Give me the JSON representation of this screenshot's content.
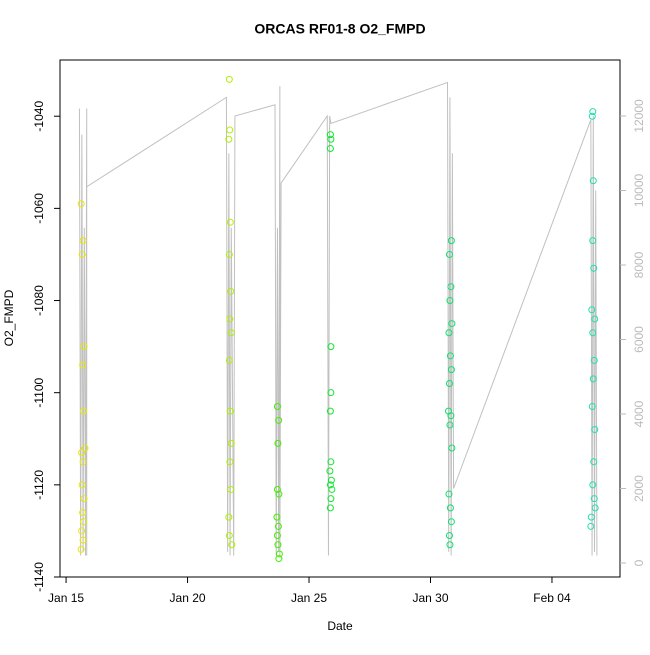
{
  "chart_data": {
    "type": "scatter",
    "title": "ORCAS RF01-8 O2_FMPD",
    "xlabel": "Date",
    "ylabel": "O2_FMPD",
    "xlim": [
      -0.25,
      22.8
    ],
    "xticks": [
      {
        "value": 0,
        "label": "Jan 15"
      },
      {
        "value": 5,
        "label": "Jan 20"
      },
      {
        "value": 10,
        "label": "Jan 25"
      },
      {
        "value": 15,
        "label": "Jan 30"
      },
      {
        "value": 20,
        "label": "Feb 04"
      }
    ],
    "ylim": [
      -1140,
      -1027.8
    ],
    "yticks": [
      -1140,
      -1120,
      -1100,
      -1080,
      -1060,
      -1040
    ],
    "y2lim": [
      -376,
      13503
    ],
    "y2ticks": [
      0,
      2000,
      4000,
      6000,
      8000,
      10000,
      12000
    ],
    "y2color": "#bbbbbb",
    "series": [
      {
        "color": "#e8e800",
        "x": [
          0.62,
          0.7,
          0.66,
          0.74,
          0.68,
          0.72,
          0.64,
          0.7,
          0.66,
          0.74,
          0.68,
          0.72,
          0.64,
          0.7,
          0.62,
          0.78
        ],
        "values": [
          -1059,
          -1067,
          -1070,
          -1090,
          -1094,
          -1104,
          -1113,
          -1115,
          -1120,
          -1123,
          -1126,
          -1128,
          -1130,
          -1132,
          -1134,
          -1112
        ]
      },
      {
        "color": "#b0f000",
        "x": [
          6.72,
          6.74,
          6.7,
          6.76,
          6.72,
          6.78,
          6.74,
          6.8,
          6.72,
          6.76,
          6.8,
          6.74,
          6.78,
          6.7,
          6.72,
          6.82
        ],
        "values": [
          -1032,
          -1043,
          -1045,
          -1063,
          -1070,
          -1078,
          -1084,
          -1087,
          -1093,
          -1104,
          -1111,
          -1115,
          -1121,
          -1127,
          -1131,
          -1133
        ]
      },
      {
        "color": "#44ee00",
        "x": [
          8.7,
          8.75,
          8.72,
          8.7,
          8.76,
          8.68,
          8.74,
          8.7,
          8.72,
          8.78,
          8.76
        ],
        "values": [
          -1103,
          -1106,
          -1111,
          -1121,
          -1122,
          -1127,
          -1129,
          -1131,
          -1133,
          -1135,
          -1136
        ]
      },
      {
        "color": "#10e830",
        "x": [
          10.88,
          10.9,
          10.88,
          10.9,
          10.9,
          10.88,
          10.9,
          10.86,
          10.92,
          10.88,
          10.94,
          10.9,
          10.88
        ],
        "values": [
          -1044,
          -1045,
          -1047,
          -1090,
          -1100,
          -1104,
          -1115,
          -1117,
          -1119,
          -1120,
          -1121,
          -1123,
          -1125
        ]
      },
      {
        "color": "#10e070",
        "x": [
          15.86,
          15.78,
          15.84,
          15.8,
          15.88,
          15.76,
          15.82,
          15.86,
          15.78,
          15.74,
          15.84,
          15.8,
          15.88,
          15.76,
          15.82,
          15.86,
          15.78,
          15.8
        ],
        "values": [
          -1067,
          -1070,
          -1077,
          -1080,
          -1085,
          -1087,
          -1092,
          -1095,
          -1098,
          -1104,
          -1105,
          -1107,
          -1112,
          -1122,
          -1125,
          -1128,
          -1131,
          -1133
        ]
      },
      {
        "color": "#20e0b0",
        "x": [
          21.68,
          21.66,
          21.7,
          21.68,
          21.72,
          21.64,
          21.76,
          21.68,
          21.74,
          21.7,
          21.66,
          21.76,
          21.72,
          21.68,
          21.74,
          21.78,
          21.62,
          21.6
        ],
        "values": [
          -1039,
          -1040,
          -1054,
          -1067,
          -1073,
          -1082,
          -1084,
          -1087,
          -1093,
          -1097,
          -1103,
          -1108,
          -1115,
          -1120,
          -1123,
          -1125,
          -1127,
          -1129
        ]
      },
      {
        "type": "line",
        "axis": "y2",
        "color": "#c0c0c0",
        "x": [
          0.55,
          0.6,
          0.65,
          0.7,
          0.75,
          0.8,
          0.85,
          0.85,
          0.85,
          6.6,
          6.65,
          6.7,
          6.75,
          6.8,
          6.9,
          6.95,
          8.6,
          8.65,
          8.7,
          8.75,
          8.8,
          8.8,
          8.85,
          10.75,
          10.8,
          10.85,
          10.9,
          15.7,
          15.75,
          15.8,
          15.85,
          15.9,
          15.95,
          21.6,
          21.65,
          21.7,
          21.75,
          21.8,
          21.85
        ],
        "values": [
          12200,
          200,
          11500,
          300,
          9000,
          200,
          12200,
          200,
          10100,
          12500,
          300,
          11000,
          200,
          9000,
          200,
          12000,
          12300,
          200,
          9000,
          300,
          12800,
          200,
          10200,
          12000,
          200,
          12000,
          11800,
          12900,
          300,
          12500,
          200,
          11000,
          2000,
          11900,
          200,
          12000,
          300,
          10000,
          200
        ]
      }
    ]
  }
}
